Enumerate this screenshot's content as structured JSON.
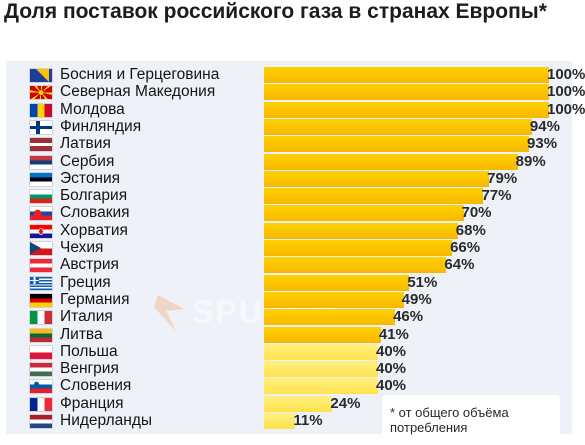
{
  "title": "Доля поставок российского газа в странах Европы*",
  "footnote": "* от общего объёма потребления",
  "watermark": "SPUTNIK",
  "colors": {
    "bar": "#f7b800",
    "bar_light": "#ffe24a",
    "panel": "#eef1f7"
  },
  "chart_data": {
    "type": "bar",
    "orientation": "horizontal",
    "unit": "%",
    "xlim": [
      0,
      100
    ],
    "categories": [
      "Босния и Герцеговина",
      "Северная Македония",
      "Молдова",
      "Финляндия",
      "Латвия",
      "Сербия",
      "Эстония",
      "Болгария",
      "Словакия",
      "Хорватия",
      "Чехия",
      "Австрия",
      "Греция",
      "Германия",
      "Италия",
      "Литва",
      "Польша",
      "Венгрия",
      "Словения",
      "Франция",
      "Нидерланды"
    ],
    "values": [
      100,
      100,
      100,
      94,
      93,
      89,
      79,
      77,
      70,
      68,
      66,
      64,
      51,
      49,
      46,
      41,
      40,
      40,
      40,
      24,
      11
    ],
    "value_labels": [
      "100%",
      "100%",
      "100%",
      "94%",
      "93%",
      "89%",
      "79%",
      "77%",
      "70%",
      "68%",
      "66%",
      "64%",
      "51%",
      "49%",
      "46%",
      "41%",
      "40%",
      "40%",
      "40%",
      "24%",
      "11%"
    ],
    "flags": [
      "bosnia-flag-icon",
      "north-macedonia-flag-icon",
      "moldova-flag-icon",
      "finland-flag-icon",
      "latvia-flag-icon",
      "serbia-flag-icon",
      "estonia-flag-icon",
      "bulgaria-flag-icon",
      "slovakia-flag-icon",
      "croatia-flag-icon",
      "czech-flag-icon",
      "austria-flag-icon",
      "greece-flag-icon",
      "germany-flag-icon",
      "italy-flag-icon",
      "lithuania-flag-icon",
      "poland-flag-icon",
      "hungary-flag-icon",
      "slovenia-flag-icon",
      "france-flag-icon",
      "netherlands-flag-icon"
    ]
  }
}
